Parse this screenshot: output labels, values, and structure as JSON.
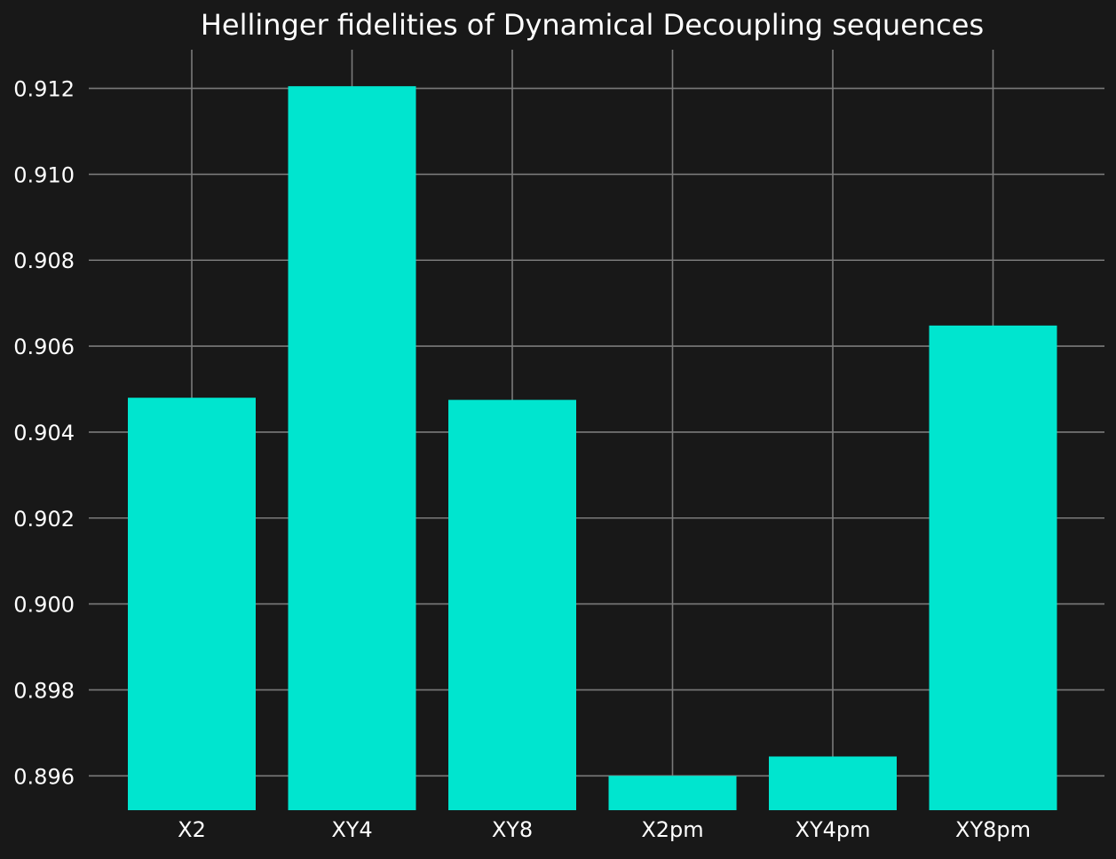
{
  "chart_data": {
    "type": "bar",
    "title": "Hellinger fidelities of Dynamical Decoupling sequences",
    "xlabel": "",
    "ylabel": "",
    "categories": [
      "X2",
      "XY4",
      "XY8",
      "X2pm",
      "XY4pm",
      "XY8pm"
    ],
    "values": [
      0.9048,
      0.91205,
      0.90475,
      0.896,
      0.89645,
      0.90648
    ],
    "ylim": [
      0.8952,
      0.9129
    ],
    "yticks": [
      "0.896",
      "0.898",
      "0.900",
      "0.902",
      "0.904",
      "0.906",
      "0.908",
      "0.910",
      "0.912"
    ],
    "grid": true,
    "legend": "none",
    "colors": {
      "bar": "#00e5cf",
      "background": "#181818",
      "grid": "#7a7a7a",
      "text": "#ffffff"
    }
  }
}
